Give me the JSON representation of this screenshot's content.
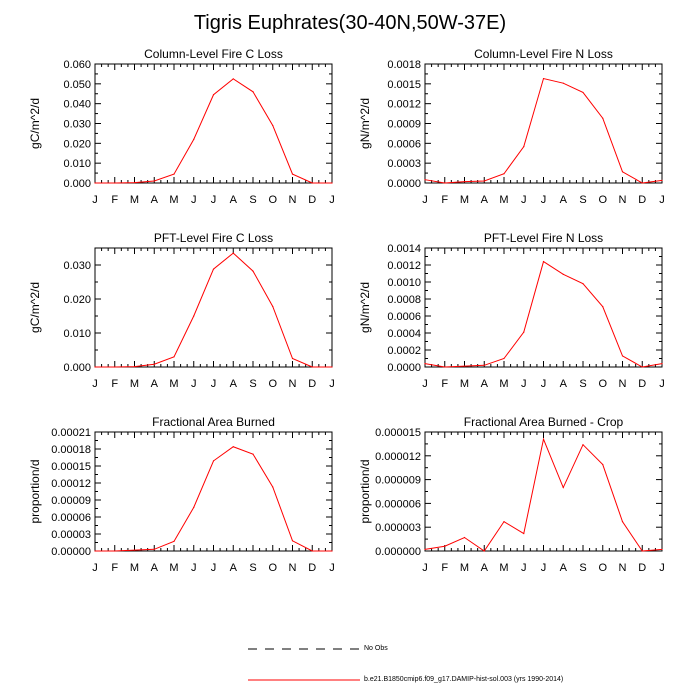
{
  "title": "Tigris Euphrates(30-40N,50W-37E)",
  "month_labels": [
    "J",
    "F",
    "M",
    "A",
    "M",
    "J",
    "J",
    "A",
    "S",
    "O",
    "N",
    "D",
    "J"
  ],
  "colors": {
    "series": "#ff0000",
    "axis": "#000000",
    "obs": "#000000"
  },
  "legend": {
    "obs_label": "No Obs",
    "model_label": "b.e21.B1850cmip6.f09_g17.DAMIP-hist-sol.003 (yrs 1990-2014)"
  },
  "chart_data": [
    {
      "type": "line",
      "title": "Column-Level Fire C Loss",
      "ylabel": "gC/m^2/d",
      "ylim": [
        0,
        0.06
      ],
      "yticks": [
        "0.000",
        "0.010",
        "0.020",
        "0.030",
        "0.040",
        "0.050",
        "0.060"
      ],
      "x": [
        "J",
        "F",
        "M",
        "A",
        "M",
        "J",
        "J",
        "A",
        "S",
        "O",
        "N",
        "D",
        "J"
      ],
      "values": [
        0.0,
        0.0,
        0.0002,
        0.001,
        0.0045,
        0.022,
        0.0445,
        0.0525,
        0.046,
        0.029,
        0.0045,
        0.0,
        0.0
      ]
    },
    {
      "type": "line",
      "title": "Column-Level Fire N Loss",
      "ylabel": "gN/m^2/d",
      "ylim": [
        0,
        0.0018
      ],
      "yticks": [
        "0.0000",
        "0.0003",
        "0.0006",
        "0.0009",
        "0.0012",
        "0.0015",
        "0.0018"
      ],
      "x": [
        "J",
        "F",
        "M",
        "A",
        "M",
        "J",
        "J",
        "A",
        "S",
        "O",
        "N",
        "D",
        "J"
      ],
      "values": [
        5e-05,
        0.0,
        2e-05,
        3e-05,
        0.00014,
        0.00055,
        0.00158,
        0.00151,
        0.00137,
        0.00098,
        0.00017,
        0.0,
        4e-05
      ]
    },
    {
      "type": "line",
      "title": "PFT-Level Fire C Loss",
      "ylabel": "gC/m^2/d",
      "ylim": [
        0,
        0.035
      ],
      "yticks": [
        "0.000",
        "0.010",
        "0.020",
        "0.030"
      ],
      "x": [
        "J",
        "F",
        "M",
        "A",
        "M",
        "J",
        "J",
        "A",
        "S",
        "O",
        "N",
        "D",
        "J"
      ],
      "values": [
        0.0,
        0.0,
        0.0001,
        0.0008,
        0.003,
        0.015,
        0.0288,
        0.0335,
        0.0282,
        0.0178,
        0.0025,
        0.0,
        0.0
      ]
    },
    {
      "type": "line",
      "title": "PFT-Level Fire N Loss",
      "ylabel": "gN/m^2/d",
      "ylim": [
        0,
        0.0014
      ],
      "yticks": [
        "0.0000",
        "0.0002",
        "0.0004",
        "0.0006",
        "0.0008",
        "0.0010",
        "0.0012",
        "0.0014"
      ],
      "x": [
        "J",
        "F",
        "M",
        "A",
        "M",
        "J",
        "J",
        "A",
        "S",
        "O",
        "N",
        "D",
        "J"
      ],
      "values": [
        4e-05,
        0.0,
        1e-05,
        2e-05,
        0.0001,
        0.00041,
        0.00124,
        0.00109,
        0.00098,
        0.00071,
        0.00013,
        0.0,
        4e-05
      ]
    },
    {
      "type": "line",
      "title": "Fractional Area Burned",
      "ylabel": "proportion/d",
      "ylim": [
        0,
        0.00021
      ],
      "yticks": [
        "0.00000",
        "0.00003",
        "0.00006",
        "0.00009",
        "0.00012",
        "0.00015",
        "0.00018",
        "0.00021"
      ],
      "x": [
        "J",
        "F",
        "M",
        "A",
        "M",
        "J",
        "J",
        "A",
        "S",
        "O",
        "N",
        "D",
        "J"
      ],
      "values": [
        0.0,
        0.0,
        1.5e-06,
        3e-06,
        1.7e-05,
        7.7e-05,
        0.000159,
        0.000184,
        0.000171,
        0.000113,
        1.8e-05,
        0.0,
        0.0
      ]
    },
    {
      "type": "line",
      "title": "Fractional Area Burned - Crop",
      "ylabel": "proportion/d",
      "ylim": [
        0,
        1.5e-05
      ],
      "yticks": [
        "0.000000",
        "0.000003",
        "0.000006",
        "0.000009",
        "0.000012",
        "0.000015"
      ],
      "x": [
        "J",
        "F",
        "M",
        "A",
        "M",
        "J",
        "J",
        "A",
        "S",
        "O",
        "N",
        "D",
        "J"
      ],
      "values": [
        2e-07,
        6e-07,
        1.7e-06,
        0.0,
        3.7e-06,
        2.2e-06,
        1.41e-05,
        8e-06,
        1.34e-05,
        1.09e-05,
        3.7e-06,
        0.0,
        2e-07
      ]
    }
  ]
}
